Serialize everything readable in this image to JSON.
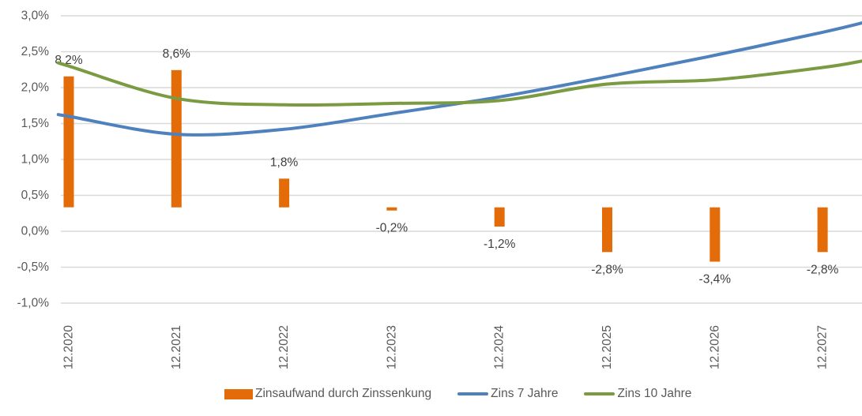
{
  "chart_data": {
    "type": "combo",
    "title": "",
    "xlabel": "",
    "ylabel": "",
    "categories": [
      "12.2020",
      "12.2021",
      "12.2022",
      "12.2023",
      "12.2024",
      "12.2025",
      "12.2026",
      "12.2027"
    ],
    "series": [
      {
        "name": "Zinsaufwand durch Zinssenkung",
        "type": "bar",
        "axis": "secondary",
        "values": [
          8.2,
          8.6,
          1.8,
          -0.2,
          -1.2,
          -2.8,
          -3.4,
          -2.8
        ],
        "labels": [
          "8,2%",
          "8,6%",
          "1,8%",
          "-0,2%",
          "-1,2%",
          "-2,8%",
          "-3,4%",
          "-2,8%"
        ],
        "color": "#E36C09"
      },
      {
        "name": "Zins 7 Jahre",
        "type": "line",
        "axis": "primary",
        "values": [
          1.6,
          1.35,
          1.42,
          1.64,
          1.87,
          2.15,
          2.45,
          2.77
        ],
        "edge_value": 2.9,
        "color": "#4F81BD"
      },
      {
        "name": "Zins 10 Jahre",
        "type": "line",
        "axis": "primary",
        "values": [
          2.3,
          1.85,
          1.76,
          1.78,
          1.82,
          2.05,
          2.11,
          2.28
        ],
        "edge_value": 2.37,
        "color": "#7B9B43"
      }
    ],
    "y_axis": {
      "tick_labels": [
        "3,0%",
        "2,5%",
        "2,0%",
        "1,5%",
        "1,0%",
        "0,5%",
        "0,0%",
        "-0,5%",
        "-1,0%"
      ],
      "tick_values": [
        3.0,
        2.5,
        2.0,
        1.5,
        1.0,
        0.5,
        0.0,
        -0.5,
        -1.0
      ],
      "ylim": [
        -1.0,
        3.0
      ],
      "number_format": "german-percent"
    },
    "secondary_ylim": [
      -6,
      12
    ],
    "grid": "horizontal",
    "smoothed_lines": true,
    "lines_clipped_at_right_edge": true,
    "legend_position": "bottom"
  },
  "legend": {
    "items": [
      {
        "label": "Zinsaufwand durch Zinssenkung",
        "color": "#E36C09",
        "marker": "rect"
      },
      {
        "label": "Zins 7 Jahre",
        "color": "#4F81BD",
        "marker": "line"
      },
      {
        "label": "Zins 10 Jahre",
        "color": "#7B9B43",
        "marker": "line"
      }
    ]
  },
  "colors": {
    "background": "#FFFFFF",
    "gridline": "#D9D9D9",
    "axis_text": "#595959",
    "data_label_text": "#3F3F3F"
  }
}
